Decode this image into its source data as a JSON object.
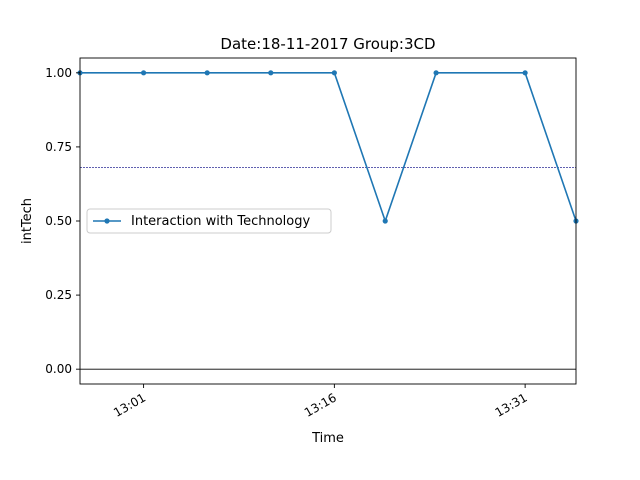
{
  "chart_data": {
    "type": "line",
    "title": "Date:18-11-2017  Group:3CD",
    "xlabel": "Time",
    "ylabel": "intTech",
    "x_unit": "clock time (HH:MM)",
    "xlim": [
      "12:56",
      "13:35"
    ],
    "ylim": [
      -0.05,
      1.05
    ],
    "x_ticks": [
      {
        "label": "13:01",
        "time": "13:01"
      },
      {
        "label": "13:16",
        "time": "13:16"
      },
      {
        "label": "13:31",
        "time": "13:31"
      }
    ],
    "y_ticks": [
      {
        "label": "0.00",
        "value": 0.0
      },
      {
        "label": "0.25",
        "value": 0.25
      },
      {
        "label": "0.50",
        "value": 0.5
      },
      {
        "label": "0.75",
        "value": 0.75
      },
      {
        "label": "1.00",
        "value": 1.0
      }
    ],
    "series": [
      {
        "name": "Interaction with Technology",
        "color": "#1f77b4",
        "marker": "dot",
        "x": [
          "12:56",
          "13:01",
          "13:06",
          "13:11",
          "13:16",
          "13:20",
          "13:24",
          "13:31",
          "13:35"
        ],
        "values": [
          1.0,
          1.0,
          1.0,
          1.0,
          1.0,
          0.5,
          1.0,
          1.0,
          0.5
        ]
      }
    ],
    "reference_lines": [
      {
        "value": 0.68,
        "style": "dotted",
        "color": "#000080"
      },
      {
        "value": 0.0,
        "style": "solid",
        "color": "#000000"
      }
    ],
    "legend_position": "center-left",
    "grid": false
  }
}
